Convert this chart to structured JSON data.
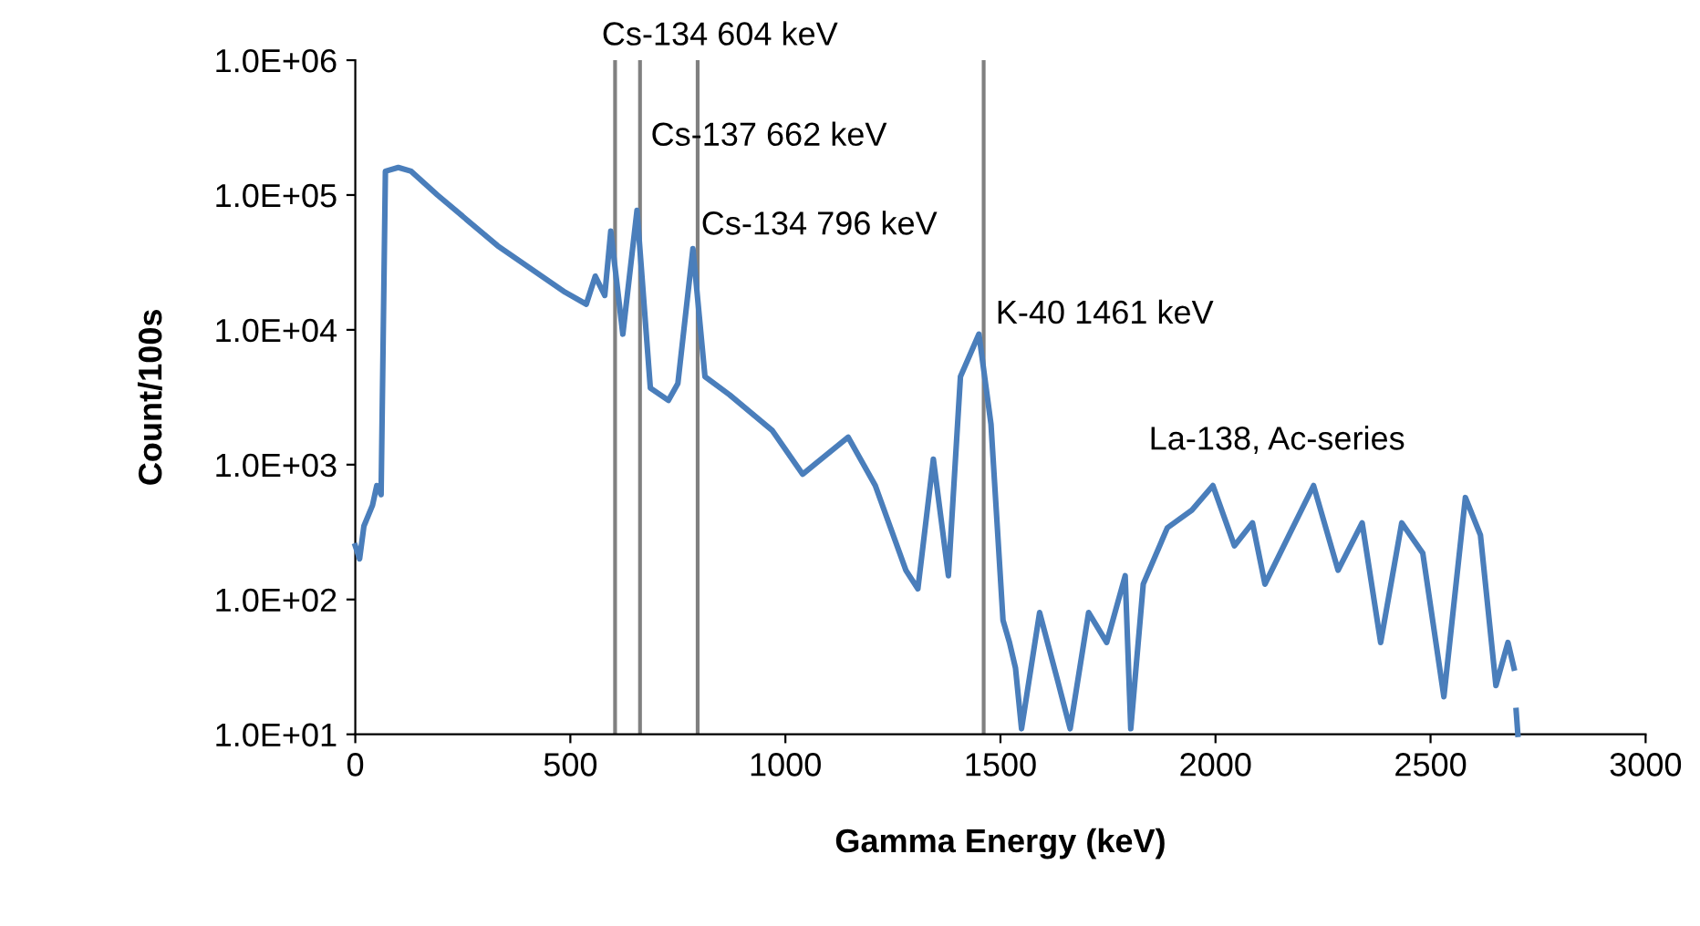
{
  "chart_data": {
    "type": "line",
    "xlabel": "Gamma Energy (keV)",
    "ylabel": "Count/100s",
    "log": "y",
    "grid": false,
    "marker": "none",
    "line_style": "solid",
    "xlim": [
      0,
      3000
    ],
    "xticks": [
      0,
      500,
      1000,
      1500,
      2000,
      2500,
      3000
    ],
    "ylim": [
      10,
      1000000
    ],
    "yticks": [
      {
        "value": 10,
        "label": "1.0E+01"
      },
      {
        "value": 100,
        "label": "1.0E+02"
      },
      {
        "value": 1000,
        "label": "1.0E+03"
      },
      {
        "value": 10000,
        "label": "1.0E+04"
      },
      {
        "value": 100000,
        "label": "1.0E+05"
      },
      {
        "value": 1000000,
        "label": "1.0E+06"
      }
    ],
    "series": [
      {
        "color": "#4a7ebb",
        "x": [
          0,
          10,
          20,
          40,
          50,
          60,
          70,
          100,
          130,
          191,
          331,
          488,
          537,
          558,
          580,
          594,
          622,
          655,
          686,
          728,
          750,
          785,
          813,
          870,
          969,
          1040,
          1146,
          1209,
          1280,
          1308,
          1344,
          1379,
          1407,
          1450,
          1478,
          1506,
          1521,
          1535,
          1549,
          1591,
          1633,
          1662,
          1705,
          1747,
          1790,
          1803,
          1832,
          1888,
          1945,
          1994,
          2044,
          2086,
          2115,
          2171,
          2228,
          2285,
          2341,
          2384,
          2433,
          2482,
          2531,
          2581,
          2616,
          2652,
          2680,
          2694,
          2696,
          2699,
          2703
        ],
        "values": [
          250,
          200,
          350,
          500,
          700,
          600,
          150000,
          160000,
          150000,
          100000,
          42000,
          19000,
          15500,
          25000,
          18000,
          54000,
          9300,
          77000,
          3700,
          3000,
          4000,
          40000,
          4500,
          3300,
          1800,
          850,
          1600,
          700,
          165,
          120,
          1100,
          150,
          4500,
          9300,
          2000,
          70,
          48,
          31,
          11,
          80,
          25,
          11,
          80,
          48,
          150,
          11,
          130,
          340,
          460,
          700,
          250,
          370,
          130,
          300,
          700,
          165,
          370,
          48,
          370,
          220,
          19,
          570,
          300,
          23,
          48,
          31,
          null,
          15,
          10
        ]
      }
    ],
    "ref_lines": [
      {
        "axis": "x",
        "value": 604,
        "color": "#808080",
        "label": "Cs-134 604 keV"
      },
      {
        "axis": "x",
        "value": 662,
        "color": "#808080",
        "label": "Cs-137 662 keV"
      },
      {
        "axis": "x",
        "value": 796,
        "color": "#808080",
        "label": "Cs-134 796 keV"
      },
      {
        "axis": "x",
        "value": 1461,
        "color": "#808080",
        "label": "K-40 1461 keV"
      }
    ],
    "annotations": [
      "La-138, Ac-series"
    ]
  }
}
